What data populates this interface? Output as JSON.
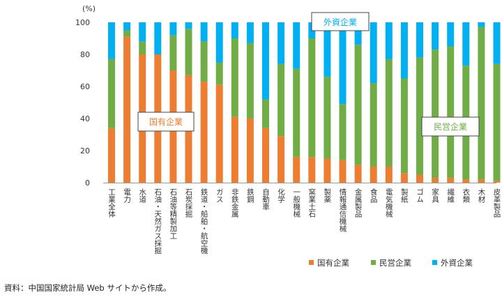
{
  "chart_data": {
    "type": "bar",
    "stacked": true,
    "unit": "(%)",
    "ylim": [
      0,
      100
    ],
    "yticks": [
      0,
      20,
      40,
      60,
      80,
      100
    ],
    "grid": false,
    "legend_position": "bottom",
    "categories": [
      "工業全体",
      "電力",
      "水道",
      "石油・天然ガス採掘",
      "石油等精製加工",
      "石炭採掘",
      "鉄道・船舶・航空機",
      "ガス",
      "非鉄金属",
      "鉄鋼",
      "自動車",
      "化学",
      "一般機械",
      "窯業土石",
      "製薬",
      "情報通信機械",
      "金属製品",
      "食品",
      "電気機械",
      "製紙",
      "ゴム",
      "家具",
      "繊維",
      "衣類",
      "木材",
      "皮革製品"
    ],
    "series": [
      {
        "name": "国有企業",
        "color": "#ED7D31",
        "values": [
          34,
          91,
          80,
          80,
          70,
          67,
          63,
          61,
          41,
          40,
          34,
          29,
          16,
          16,
          15,
          14,
          11,
          10,
          10,
          6,
          5,
          3,
          3,
          2,
          2,
          1
        ]
      },
      {
        "name": "民営企業",
        "color": "#70AD47",
        "values": [
          43,
          4,
          8,
          0,
          22,
          29,
          25,
          14,
          49,
          47,
          18,
          45,
          55,
          74,
          51,
          35,
          75,
          52,
          67,
          59,
          73,
          80,
          82,
          71,
          95,
          73
        ]
      },
      {
        "name": "外資企業",
        "color": "#00B0F0",
        "values": [
          23,
          5,
          12,
          20,
          8,
          4,
          12,
          25,
          10,
          13,
          48,
          26,
          29,
          10,
          34,
          51,
          14,
          38,
          23,
          35,
          22,
          17,
          15,
          27,
          3,
          26
        ]
      }
    ],
    "annotations": [
      "国有企業",
      "外資企業",
      "民営企業"
    ],
    "source_note": "資料：中国国家統計局 Web サイトから作成。"
  }
}
